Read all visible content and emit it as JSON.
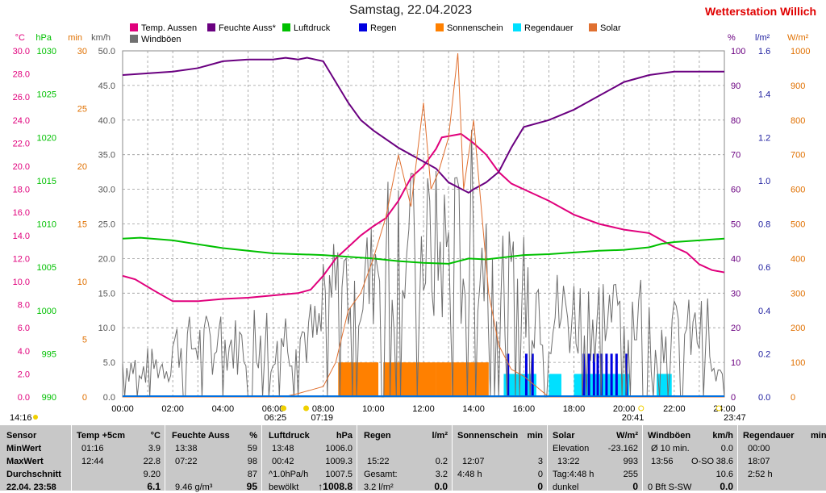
{
  "chart_data": {
    "type": "line",
    "title": "Samstag, 22.04.2023",
    "station": "Wetterstation Willich",
    "station_suffix": "​)",
    "x_ticks": [
      "00:00",
      "02:00",
      "04:00",
      "06:00",
      "08:00",
      "10:00",
      "12:00",
      "14:00",
      "16:00",
      "18:00",
      "20:00",
      "22:00",
      "24:00"
    ],
    "left_axes": [
      {
        "unit": "°C",
        "color": "#e0007c",
        "ticks": [
          "0.0",
          "2.0",
          "4.0",
          "6.0",
          "8.0",
          "10.0",
          "12.0",
          "14.0",
          "16.0",
          "18.0",
          "20.0",
          "22.0",
          "24.0",
          "26.0",
          "28.0",
          "30.0"
        ]
      },
      {
        "unit": "hPa",
        "color": "#00c000",
        "ticks": [
          "990",
          "995",
          "1000",
          "1005",
          "1010",
          "1015",
          "1020",
          "1025",
          "1030"
        ]
      },
      {
        "unit": "min",
        "color": "#e07000",
        "ticks": [
          "0",
          "5",
          "10",
          "15",
          "20",
          "25",
          "30"
        ]
      },
      {
        "unit": "km/h",
        "color": "#555555",
        "ticks": [
          "0.0",
          "5.0",
          "10.0",
          "15.0",
          "20.0",
          "25.0",
          "30.0",
          "35.0",
          "40.0",
          "45.0",
          "50.0"
        ]
      }
    ],
    "right_axes": [
      {
        "unit": "%",
        "color": "#6a0080",
        "ticks": [
          "0",
          "10",
          "20",
          "30",
          "40",
          "50",
          "60",
          "70",
          "80",
          "90",
          "100"
        ]
      },
      {
        "unit": "l/m²",
        "color": "#2020a0",
        "ticks": [
          "0.0",
          "0.2",
          "0.4",
          "0.6",
          "0.8",
          "1.0",
          "1.2",
          "1.4",
          "1.6"
        ]
      },
      {
        "unit": "W/m²",
        "color": "#e07000",
        "ticks": [
          "0",
          "100",
          "200",
          "300",
          "400",
          "500",
          "600",
          "700",
          "800",
          "900",
          "1000"
        ]
      }
    ],
    "legend": [
      {
        "name": "Temp. Aussen",
        "color": "#e0007c"
      },
      {
        "name": "Feuchte Auss*",
        "color": "#6a0080"
      },
      {
        "name": "Luftdruck",
        "color": "#00c000"
      },
      {
        "name": "Regen",
        "color": "#0000e0"
      },
      {
        "name": "Sonnenschein",
        "color": "#ff8000"
      },
      {
        "name": "Regendauer",
        "color": "#00e0ff"
      },
      {
        "name": "Solar",
        "color": "#e07030"
      },
      {
        "name": "Windböen",
        "color": "#707070"
      }
    ],
    "time_markers": [
      {
        "label": "14:16",
        "hour": null
      },
      {
        "label": "06:25",
        "hour": 6.42
      },
      {
        "label": "07:19",
        "hour": 7.32
      },
      {
        "label": "20:41",
        "hour": 20.68
      },
      {
        "label": "23:47",
        "hour": 23.78
      }
    ],
    "series": [
      {
        "name": "Temp. Aussen",
        "axis": "°C",
        "ymin": 0,
        "ymax": 30,
        "x": [
          0,
          0.5,
          1.27,
          2,
          3,
          4,
          5,
          6,
          7,
          7.5,
          8,
          8.5,
          9,
          9.5,
          10,
          10.5,
          11,
          11.5,
          12,
          12.5,
          12.73,
          13.5,
          14,
          14.5,
          15,
          15.5,
          16,
          17,
          18,
          19,
          20,
          21,
          22,
          22.5,
          23,
          23.5,
          24
        ],
        "values": [
          10.5,
          10.2,
          9.2,
          8.3,
          8.3,
          8.5,
          8.6,
          8.8,
          9.0,
          9.3,
          10.5,
          12.0,
          13.0,
          14.0,
          14.8,
          15.5,
          17.0,
          19.0,
          20.0,
          21.5,
          22.5,
          22.8,
          22.0,
          21.0,
          19.5,
          18.5,
          18.0,
          17.0,
          15.8,
          15.0,
          14.5,
          14.2,
          13.0,
          12.5,
          11.5,
          11.0,
          10.8
        ]
      },
      {
        "name": "Feuchte Auss*",
        "axis": "%",
        "ymin": 0,
        "ymax": 100,
        "x": [
          0,
          1,
          2,
          3,
          4,
          5,
          6,
          6.5,
          7,
          7.36,
          8,
          9,
          9.5,
          10,
          11,
          11.5,
          12,
          12.5,
          13,
          13.8,
          14,
          14.5,
          15,
          15.5,
          16,
          17,
          18,
          19,
          20,
          21,
          22,
          23,
          24
        ],
        "values": [
          93,
          93.5,
          94,
          95,
          97,
          97.5,
          97.5,
          98,
          97.5,
          98,
          97,
          85,
          80,
          77,
          72,
          70,
          68,
          66,
          62,
          59,
          60,
          62,
          65,
          72,
          78,
          80,
          83,
          87,
          91,
          93,
          94,
          94,
          94
        ]
      },
      {
        "name": "Luftdruck",
        "axis": "hPa",
        "ymin": 990,
        "ymax": 1030,
        "x": [
          0,
          0.7,
          2,
          4,
          6,
          8,
          10,
          11,
          12,
          13,
          13.8,
          14.5,
          16,
          17,
          18,
          19,
          20,
          21,
          21.5,
          22,
          23,
          24
        ],
        "values": [
          1008.3,
          1008.4,
          1008.1,
          1007.2,
          1006.6,
          1006.4,
          1006.0,
          1005.7,
          1005.5,
          1005.4,
          1006.0,
          1005.9,
          1006.4,
          1006.5,
          1006.7,
          1006.9,
          1007.0,
          1007.3,
          1007.7,
          1007.9,
          1008.1,
          1008.3
        ]
      },
      {
        "name": "Solar",
        "axis": "W/m²",
        "ymin": 0,
        "ymax": 1000,
        "x": [
          0,
          6.4,
          7,
          7.5,
          8,
          8.5,
          9,
          9.5,
          10,
          10.5,
          11,
          11.5,
          12,
          12.3,
          12.6,
          13,
          13.37,
          13.6,
          14,
          14.3,
          14.6,
          15,
          15.5,
          16,
          16.5,
          17,
          24
        ],
        "values": [
          0,
          0,
          10,
          20,
          30,
          100,
          250,
          300,
          400,
          520,
          700,
          550,
          850,
          600,
          650,
          750,
          993,
          600,
          800,
          550,
          300,
          150,
          80,
          60,
          30,
          0,
          0
        ]
      }
    ],
    "windboeen": {
      "axis": "km/h",
      "ymin": 0,
      "ymax": 50,
      "max": 38.6
    },
    "sunshine_bars": {
      "axis": "min",
      "ymin": 0,
      "ymax": 30,
      "height_min": 3,
      "spans": [
        [
          8.6,
          10.2
        ],
        [
          10.4,
          12.5
        ],
        [
          12.5,
          13.1
        ],
        [
          13.1,
          14.6
        ]
      ]
    },
    "rain_duration_bars": {
      "axis": "min",
      "ymin": 0,
      "ymax": 30,
      "height_min": 2,
      "spans": [
        [
          15.2,
          15.8
        ],
        [
          15.8,
          16.5
        ],
        [
          17.0,
          17.5
        ],
        [
          18.0,
          19.6
        ],
        [
          19.6,
          20.2
        ],
        [
          21.3,
          21.9
        ]
      ]
    },
    "rain_bars": {
      "axis": "l/m²",
      "ymin": 0,
      "ymax": 1.6,
      "height": 0.2,
      "hours": [
        15.37,
        16.1,
        16.35,
        18.4,
        18.6,
        18.8,
        18.95,
        19.1,
        19.3,
        19.5,
        19.7,
        20.1
      ]
    }
  },
  "table": {
    "row_labels": [
      "Sensor",
      "MinWert",
      "MaxWert",
      "Durchschnitt",
      "22.04. 23:58"
    ],
    "temp": {
      "header": "Temp +5cm",
      "unit": "°C",
      "min_time": "01:16",
      "min": "3.9",
      "max_time": "12:44",
      "max": "22.8",
      "avg": "9.20",
      "cur": "6.1"
    },
    "feuchte": {
      "header": "Feuchte Auss",
      "unit": "%",
      "min_time": "13:38",
      "min": "59",
      "max_time": "07:22",
      "max": "98",
      "avg": "87",
      "cur_extra": "9.46 g/m³",
      "cur": "95"
    },
    "luftdruck": {
      "header": "Luftdruck",
      "unit": "hPa",
      "min_time": "13:48",
      "min": "1006.0",
      "max_time": "00:42",
      "max": "1009.3",
      "avg_label": "^1.0hPa/h",
      "avg": "1007.5",
      "cur_label": "bewölkt",
      "cur": "↑1008.8"
    },
    "regen": {
      "header": "Regen",
      "unit": "l/m²",
      "max_time": "15:22",
      "max": "0.2",
      "avg_label": "Gesamt:",
      "avg": "3.2",
      "cur_label": "3.2 l/m²",
      "cur": "0.0"
    },
    "sonnenschein": {
      "header": "Sonnenschein",
      "unit": "min",
      "max_time": "12:07",
      "max": "3",
      "avg_label": "4:48 h",
      "avg": "0",
      "cur": "0"
    },
    "solar": {
      "header": "Solar",
      "unit": "W/m²",
      "min_label": "Elevation",
      "min": "-23.162",
      "max_time": "13:22",
      "max": "993",
      "avg_label": "Tag:4:48 h",
      "avg": "255",
      "cur_label": "dunkel",
      "cur": "0"
    },
    "windboeen": {
      "header": "Windböen",
      "unit": "km/h",
      "min_label": "Ø 10 min.",
      "min": "0.0",
      "max_time": "13:56",
      "max_dir": "O-SO",
      "max": "38.6",
      "avg": "10.6",
      "cur_label": "0 Bft S-SW",
      "cur": "0.0"
    },
    "regendauer": {
      "header": "Regendauer",
      "unit": "min",
      "min_time": "00:00",
      "max_time": "18:07",
      "avg": "2:52 h"
    }
  }
}
